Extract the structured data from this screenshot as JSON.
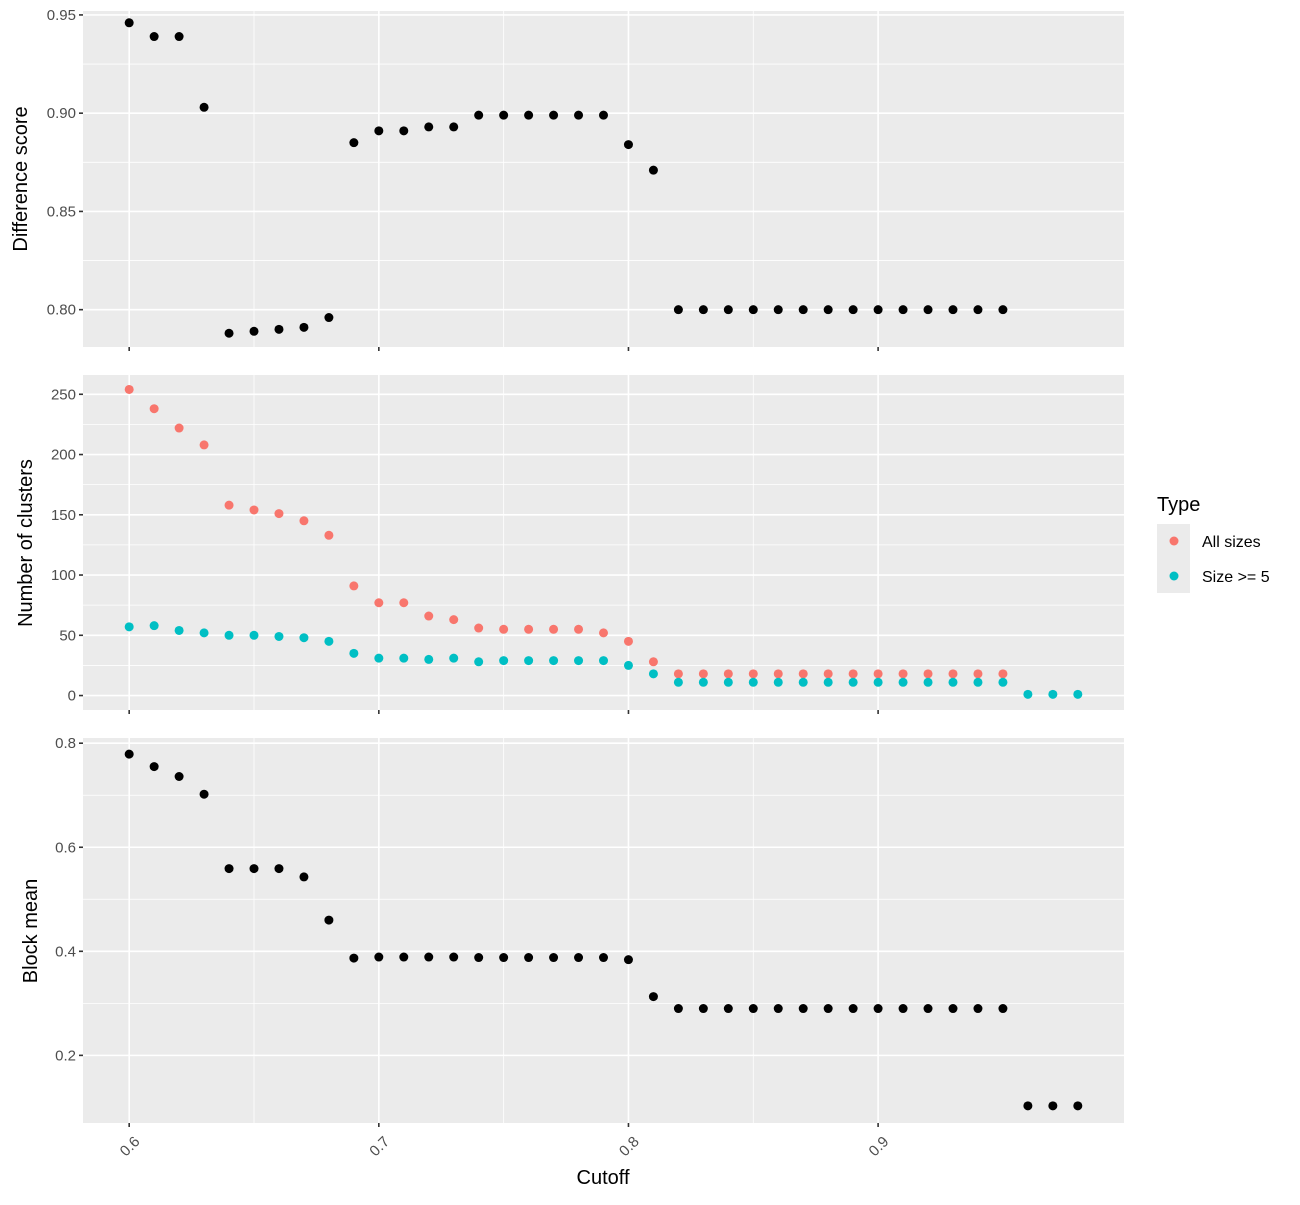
{
  "chart_data": {
    "type": "scatter",
    "xlabel": "Cutoff",
    "xlim": [
      0.5815,
      0.9985
    ],
    "xticks": [
      0.6,
      0.7,
      0.8,
      0.9
    ],
    "xtick_labels": [
      "0.6",
      "0.7",
      "0.8",
      "0.9"
    ],
    "grid": true,
    "legend": {
      "title": "Type",
      "position": "right",
      "entries": [
        {
          "label": "All sizes",
          "color": "#f8766d"
        },
        {
          "label": "Size >= 5",
          "color": "#00bfc4"
        }
      ]
    },
    "panels": [
      {
        "ylabel": "Difference score",
        "ylim": [
          0.781,
          0.952
        ],
        "yticks": [
          0.8,
          0.85,
          0.9,
          0.95
        ],
        "ytick_labels": [
          "0.80",
          "0.85",
          "0.90",
          "0.95"
        ],
        "series": [
          {
            "color": "#000000",
            "x": [
              0.6,
              0.61,
              0.62,
              0.63,
              0.64,
              0.65,
              0.66,
              0.67,
              0.68,
              0.69,
              0.7,
              0.71,
              0.72,
              0.73,
              0.74,
              0.75,
              0.76,
              0.77,
              0.78,
              0.79,
              0.8,
              0.81,
              0.82,
              0.83,
              0.84,
              0.85,
              0.86,
              0.87,
              0.88,
              0.89,
              0.9,
              0.91,
              0.92,
              0.93,
              0.94,
              0.95
            ],
            "values": [
              0.946,
              0.939,
              0.939,
              0.903,
              0.788,
              0.789,
              0.79,
              0.791,
              0.796,
              0.885,
              0.891,
              0.891,
              0.893,
              0.893,
              0.899,
              0.899,
              0.899,
              0.899,
              0.899,
              0.899,
              0.884,
              0.871,
              0.8,
              0.8,
              0.8,
              0.8,
              0.8,
              0.8,
              0.8,
              0.8,
              0.8,
              0.8,
              0.8,
              0.8,
              0.8,
              0.8
            ]
          }
        ]
      },
      {
        "ylabel": "Number of clusters",
        "ylim": [
          -12,
          266
        ],
        "yticks": [
          0,
          50,
          100,
          150,
          200,
          250
        ],
        "ytick_labels": [
          "0",
          "50",
          "100",
          "150",
          "200",
          "250"
        ],
        "series": [
          {
            "name": "All sizes",
            "color": "#f8766d",
            "x": [
              0.6,
              0.61,
              0.62,
              0.63,
              0.64,
              0.65,
              0.66,
              0.67,
              0.68,
              0.69,
              0.7,
              0.71,
              0.72,
              0.73,
              0.74,
              0.75,
              0.76,
              0.77,
              0.78,
              0.79,
              0.8,
              0.81,
              0.82,
              0.83,
              0.84,
              0.85,
              0.86,
              0.87,
              0.88,
              0.89,
              0.9,
              0.91,
              0.92,
              0.93,
              0.94,
              0.95
            ],
            "values": [
              254,
              238,
              222,
              208,
              158,
              154,
              151,
              145,
              133,
              91,
              77,
              77,
              66,
              63,
              56,
              55,
              55,
              55,
              55,
              52,
              45,
              28,
              18,
              18,
              18,
              18,
              18,
              18,
              18,
              18,
              18,
              18,
              18,
              18,
              18,
              18
            ]
          },
          {
            "name": "Size >= 5",
            "color": "#00bfc4",
            "x": [
              0.6,
              0.61,
              0.62,
              0.63,
              0.64,
              0.65,
              0.66,
              0.67,
              0.68,
              0.69,
              0.7,
              0.71,
              0.72,
              0.73,
              0.74,
              0.75,
              0.76,
              0.77,
              0.78,
              0.79,
              0.8,
              0.81,
              0.82,
              0.83,
              0.84,
              0.85,
              0.86,
              0.87,
              0.88,
              0.89,
              0.9,
              0.91,
              0.92,
              0.93,
              0.94,
              0.95,
              0.96,
              0.97,
              0.98
            ],
            "values": [
              57,
              58,
              54,
              52,
              50,
              50,
              49,
              48,
              45,
              35,
              31,
              31,
              30,
              31,
              28,
              29,
              29,
              29,
              29,
              29,
              25,
              18,
              11,
              11,
              11,
              11,
              11,
              11,
              11,
              11,
              11,
              11,
              11,
              11,
              11,
              11,
              1,
              1,
              1
            ]
          }
        ]
      },
      {
        "ylabel": "Block mean",
        "ylim": [
          0.07,
          0.81
        ],
        "yticks": [
          0.2,
          0.4,
          0.6,
          0.8
        ],
        "ytick_labels": [
          "0.2",
          "0.4",
          "0.6",
          "0.8"
        ],
        "series": [
          {
            "color": "#000000",
            "x": [
              0.6,
              0.61,
              0.62,
              0.63,
              0.64,
              0.65,
              0.66,
              0.67,
              0.68,
              0.69,
              0.7,
              0.71,
              0.72,
              0.73,
              0.74,
              0.75,
              0.76,
              0.77,
              0.78,
              0.79,
              0.8,
              0.81,
              0.82,
              0.83,
              0.84,
              0.85,
              0.86,
              0.87,
              0.88,
              0.89,
              0.9,
              0.91,
              0.92,
              0.93,
              0.94,
              0.95,
              0.96,
              0.97,
              0.98
            ],
            "values": [
              0.779,
              0.755,
              0.736,
              0.702,
              0.559,
              0.559,
              0.559,
              0.543,
              0.46,
              0.387,
              0.389,
              0.389,
              0.389,
              0.389,
              0.388,
              0.388,
              0.388,
              0.388,
              0.388,
              0.388,
              0.384,
              0.313,
              0.29,
              0.29,
              0.29,
              0.29,
              0.29,
              0.29,
              0.29,
              0.29,
              0.29,
              0.29,
              0.29,
              0.29,
              0.29,
              0.29,
              0.103,
              0.103,
              0.103
            ]
          }
        ]
      }
    ]
  }
}
